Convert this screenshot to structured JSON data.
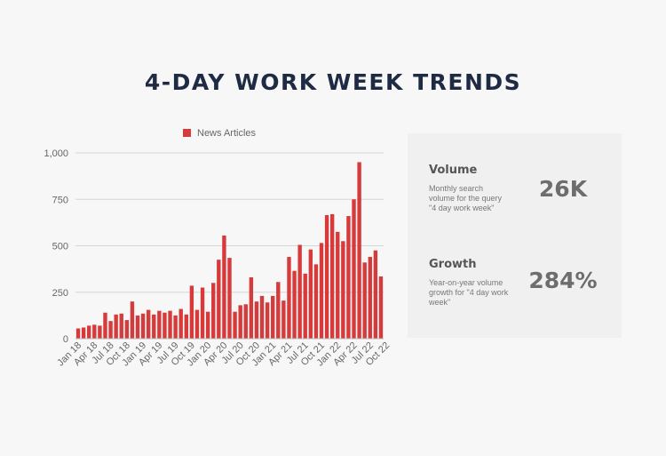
{
  "title": "4-DAY WORK WEEK TRENDS",
  "chart_data": {
    "type": "bar",
    "title": "",
    "xlabel": "",
    "ylabel": "",
    "ylim": [
      0,
      1000
    ],
    "yticks": [
      0,
      250,
      500,
      750,
      1000
    ],
    "ytick_labels": [
      "0",
      "250",
      "500",
      "750",
      "1,000"
    ],
    "grid": true,
    "legend_position": "top-center",
    "color": "#d63a3a",
    "tick_labels": [
      "Jan 18",
      "Apr 18",
      "Jul 18",
      "Oct 18",
      "Jan 19",
      "Apr 19",
      "Jul 19",
      "Oct 19",
      "Jan 20",
      "Apr 20",
      "Jul 20",
      "Oct 20",
      "Jan 21",
      "Apr 21",
      "Jul 21",
      "Oct 21",
      "Jan 22",
      "Apr 22",
      "Jul 22",
      "Oct 22"
    ],
    "series": [
      {
        "name": "News Articles",
        "values": [
          55,
          60,
          70,
          75,
          70,
          140,
          95,
          130,
          135,
          100,
          200,
          125,
          135,
          155,
          130,
          150,
          140,
          150,
          125,
          160,
          130,
          285,
          155,
          275,
          145,
          300,
          425,
          555,
          435,
          145,
          180,
          185,
          330,
          200,
          230,
          195,
          230,
          305,
          205,
          440,
          365,
          505,
          350,
          480,
          400,
          515,
          665,
          670,
          575,
          525,
          660,
          750,
          950,
          410,
          440,
          475,
          335
        ]
      }
    ]
  },
  "stats": {
    "volume": {
      "heading": "Volume",
      "description": "Monthly search volume for the query \"4 day work week\"",
      "value": "26K"
    },
    "growth": {
      "heading": "Growth",
      "description": "Year-on-year volume growth for \"4 day work week\"",
      "value": "284%"
    }
  }
}
